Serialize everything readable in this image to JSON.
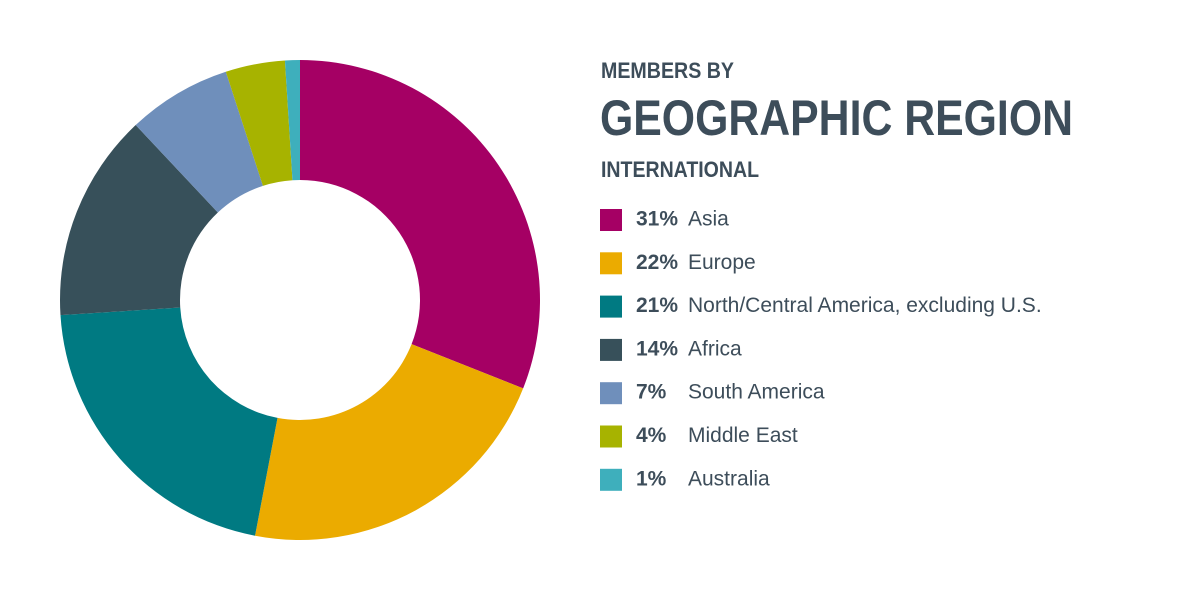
{
  "chart_data": {
    "type": "donut",
    "title": "GEOGRAPHIC REGION",
    "pretitle": "MEMBERS BY",
    "subtitle": "INTERNATIONAL",
    "categories": [
      "Asia",
      "Europe",
      "North/Central America, excluding U.S.",
      "Africa",
      "South America",
      "Middle East",
      "Australia"
    ],
    "values": [
      31,
      22,
      21,
      14,
      7,
      4,
      1
    ],
    "value_labels": [
      "31%",
      "22%",
      "21%",
      "14%",
      "7%",
      "4%",
      "1%"
    ],
    "colors": [
      "#a50064",
      "#ebab00",
      "#007a82",
      "#37505a",
      "#6f8fbb",
      "#a7b300",
      "#3eafbc"
    ]
  }
}
